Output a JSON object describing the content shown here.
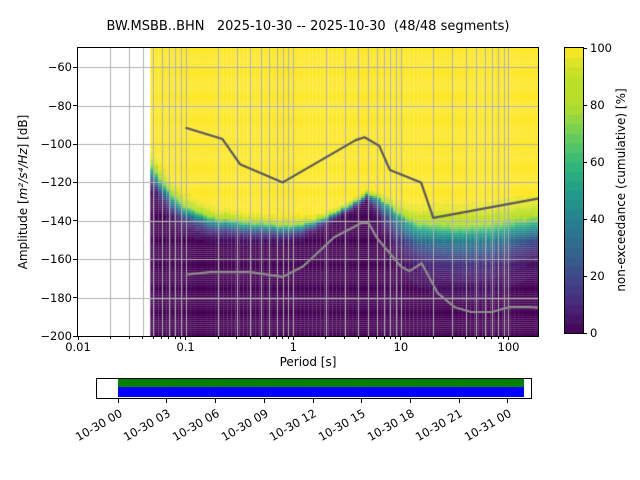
{
  "title": "BW.MSBB..BHN   2025-10-30 -- 2025-10-30  (48/48 segments)",
  "axes": {
    "xlabel": "Period [s]",
    "ylabel_prefix": "Amplitude [",
    "ylabel_math": "m²/s⁴/Hz",
    "ylabel_suffix": "] [dB]"
  },
  "colorbar": {
    "label": "non-exceedance (cumulative) [%]"
  },
  "chart_data": {
    "type": "heatmap",
    "title": "BW.MSBB..BHN   2025-10-30 -- 2025-10-30  (48/48 segments)",
    "grid_color": "#b0b0b0",
    "grid": true,
    "x_axis": {
      "label": "Period [s]",
      "scale": "log",
      "range": [
        0.01,
        188
      ],
      "ticks": [
        {
          "period": 0.01,
          "label": "0.01"
        },
        {
          "period": 0.1,
          "label": "0.1"
        },
        {
          "period": 1,
          "label": "1"
        },
        {
          "period": 10,
          "label": "10"
        },
        {
          "period": 100,
          "label": "100"
        }
      ]
    },
    "y_axis": {
      "label": "Amplitude [m²/s⁴/Hz] [dB]",
      "range": [
        -200,
        -50
      ],
      "ticks": [
        {
          "db": -60,
          "label": "−60"
        },
        {
          "db": -80,
          "label": "−80"
        },
        {
          "db": -100,
          "label": "−100"
        },
        {
          "db": -120,
          "label": "−120"
        },
        {
          "db": -140,
          "label": "−140"
        },
        {
          "db": -160,
          "label": "−160"
        },
        {
          "db": -180,
          "label": "−180"
        },
        {
          "db": -200,
          "label": "−200"
        }
      ]
    },
    "colorbar": {
      "label": "non-exceedance (cumulative) [%]",
      "range": [
        0,
        100
      ],
      "steps": 30,
      "ticks": [
        {
          "value": 0,
          "label": "0"
        },
        {
          "value": 20,
          "label": "20"
        },
        {
          "value": 40,
          "label": "40"
        },
        {
          "value": 60,
          "label": "60"
        },
        {
          "value": 80,
          "label": "80"
        },
        {
          "value": 100,
          "label": "100"
        }
      ],
      "colormap": "viridis",
      "colormap_stops": [
        [
          0.0,
          "#440154"
        ],
        [
          0.1,
          "#482878"
        ],
        [
          0.2,
          "#3e4989"
        ],
        [
          0.3,
          "#31688e"
        ],
        [
          0.4,
          "#26828e"
        ],
        [
          0.5,
          "#1f9e89"
        ],
        [
          0.6,
          "#35b779"
        ],
        [
          0.7,
          "#6ece58"
        ],
        [
          0.8,
          "#b5de2b"
        ],
        [
          0.9,
          "#bddf26"
        ],
        [
          1.0,
          "#fde725"
        ]
      ]
    },
    "heatmap": {
      "description": "PPSD cumulative non-exceedance distribution; per-period median and asymmetric spread (dB) of the PSD histogram",
      "period_range": [
        0.047,
        188
      ],
      "column_step_octaves": 0.125,
      "db_bin_width": 1,
      "distribution_percentiles": [
        {
          "period": 0.047,
          "median_db": -113.0,
          "sigma_upper_db": 4.5,
          "sigma_lower_db": 5.0
        },
        {
          "period": 0.057,
          "median_db": -120.5,
          "sigma_upper_db": 4.5,
          "sigma_lower_db": 5.5
        },
        {
          "period": 0.075,
          "median_db": -129.0,
          "sigma_upper_db": 4.2,
          "sigma_lower_db": 5.5
        },
        {
          "period": 0.1,
          "median_db": -135.0,
          "sigma_upper_db": 3.8,
          "sigma_lower_db": 5.2
        },
        {
          "period": 0.145,
          "median_db": -139.0,
          "sigma_upper_db": 3.5,
          "sigma_lower_db": 4.8
        },
        {
          "period": 0.2,
          "median_db": -141.0,
          "sigma_upper_db": 3.2,
          "sigma_lower_db": 4.5
        },
        {
          "period": 0.4,
          "median_db": -142.5,
          "sigma_upper_db": 2.8,
          "sigma_lower_db": 4.2
        },
        {
          "period": 0.8,
          "median_db": -144.0,
          "sigma_upper_db": 2.6,
          "sigma_lower_db": 3.6
        },
        {
          "period": 1.15,
          "median_db": -143.5,
          "sigma_upper_db": 2.4,
          "sigma_lower_db": 3.2
        },
        {
          "period": 1.5,
          "median_db": -141.5,
          "sigma_upper_db": 1.8,
          "sigma_lower_db": 2.4
        },
        {
          "period": 2.3,
          "median_db": -137.5,
          "sigma_upper_db": 1.4,
          "sigma_lower_db": 1.8
        },
        {
          "period": 3.5,
          "median_db": -131.5,
          "sigma_upper_db": 1.3,
          "sigma_lower_db": 1.8
        },
        {
          "period": 4.9,
          "median_db": -126.6,
          "sigma_upper_db": 1.2,
          "sigma_lower_db": 1.6
        },
        {
          "period": 6.5,
          "median_db": -129.5,
          "sigma_upper_db": 1.7,
          "sigma_lower_db": 6.0
        },
        {
          "period": 8.0,
          "median_db": -133.5,
          "sigma_upper_db": 2.6,
          "sigma_lower_db": 9.0
        },
        {
          "period": 10.0,
          "median_db": -139.5,
          "sigma_upper_db": 4.0,
          "sigma_lower_db": 11.0
        },
        {
          "period": 14.0,
          "median_db": -144.5,
          "sigma_upper_db": 5.5,
          "sigma_lower_db": 12.0
        },
        {
          "period": 22.0,
          "median_db": -146.5,
          "sigma_upper_db": 6.5,
          "sigma_lower_db": 13.5
        },
        {
          "period": 45.0,
          "median_db": -147.5,
          "sigma_upper_db": 7.0,
          "sigma_lower_db": 14.5
        },
        {
          "period": 80.0,
          "median_db": -146.0,
          "sigma_upper_db": 7.0,
          "sigma_lower_db": 13.5
        },
        {
          "period": 120.0,
          "median_db": -144.0,
          "sigma_upper_db": 6.8,
          "sigma_lower_db": 12.0
        },
        {
          "period": 188.0,
          "median_db": -142.0,
          "sigma_upper_db": 6.3,
          "sigma_lower_db": 10.5
        }
      ]
    },
    "noise_models": {
      "name": "Peterson (1993) new high / low noise models",
      "nhnm_color": "#58585c",
      "nlnm_color": "#8d8d8d",
      "nhnm": [
        [
          0.1,
          -91.5
        ],
        [
          0.22,
          -97.4
        ],
        [
          0.32,
          -110.5
        ],
        [
          0.8,
          -120.0
        ],
        [
          3.8,
          -98.0
        ],
        [
          4.6,
          -96.5
        ],
        [
          6.3,
          -101.0
        ],
        [
          7.9,
          -113.5
        ],
        [
          15.4,
          -120.0
        ],
        [
          20.0,
          -138.5
        ],
        [
          188.0,
          -128.4
        ]
      ],
      "nlnm": [
        [
          0.1,
          -168.0
        ],
        [
          0.17,
          -166.7
        ],
        [
          0.4,
          -166.7
        ],
        [
          0.8,
          -169.2
        ],
        [
          1.24,
          -163.7
        ],
        [
          2.4,
          -148.6
        ],
        [
          4.3,
          -141.1
        ],
        [
          5.0,
          -141.1
        ],
        [
          6.0,
          -149.0
        ],
        [
          10.0,
          -163.8
        ],
        [
          12.0,
          -166.2
        ],
        [
          15.6,
          -162.1
        ],
        [
          21.9,
          -177.5
        ],
        [
          31.6,
          -185.0
        ],
        [
          45.0,
          -187.5
        ],
        [
          70.0,
          -187.5
        ],
        [
          101.0,
          -185.0
        ],
        [
          154.0,
          -185.0
        ],
        [
          188.0,
          -185.2
        ]
      ]
    },
    "timeline": {
      "tick_labels": [
        "10-30 00",
        "10-30 03",
        "10-30 06",
        "10-30 09",
        "10-30 12",
        "10-30 15",
        "10-30 18",
        "10-30 21",
        "10-31 00"
      ],
      "bar_green_color": "#008000",
      "bar_blue_color": "#0000ff"
    }
  }
}
